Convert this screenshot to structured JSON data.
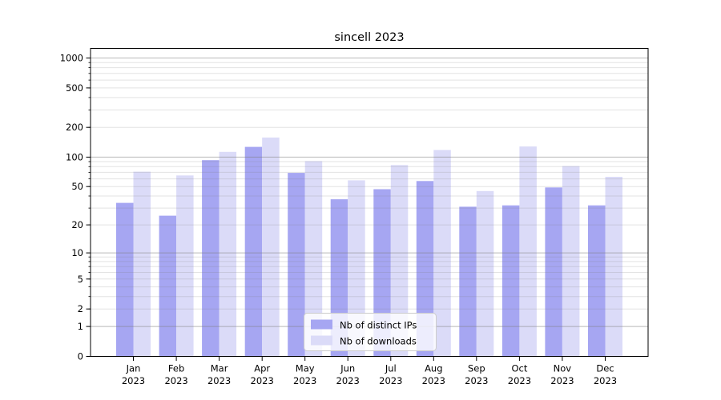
{
  "chart_data": {
    "type": "bar",
    "title": "sincell 2023",
    "xlabel": "",
    "ylabel": "",
    "yscale": "log1p",
    "ylim": [
      0,
      1250
    ],
    "yticks": [
      0,
      1,
      2,
      5,
      10,
      20,
      50,
      100,
      200,
      500,
      1000
    ],
    "grid": true,
    "legend_position": "lower center",
    "categories": [
      "Jan",
      "Feb",
      "Mar",
      "Apr",
      "May",
      "Jun",
      "Jul",
      "Aug",
      "Sep",
      "Oct",
      "Nov",
      "Dec"
    ],
    "year": "2023",
    "series": [
      {
        "name": "Nb of distinct IPs",
        "color": "#a6a6f2",
        "values": [
          34,
          25,
          93,
          127,
          69,
          37,
          47,
          57,
          31,
          32,
          49,
          32
        ]
      },
      {
        "name": "Nb of downloads",
        "color": "#dbdbf8",
        "values": [
          71,
          65,
          113,
          158,
          91,
          58,
          83,
          118,
          45,
          128,
          81,
          63
        ]
      }
    ],
    "colors": {
      "grid_major": "#b3b3b3",
      "grid_minor": "#e8e8e8",
      "axis": "#000000",
      "background": "#ffffff"
    }
  }
}
